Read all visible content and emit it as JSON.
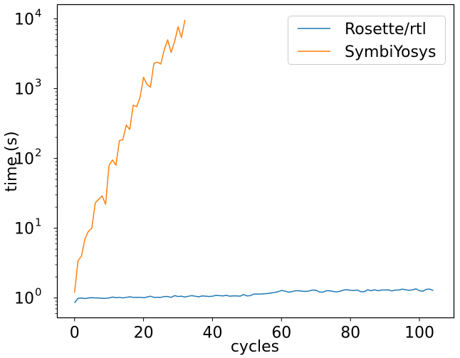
{
  "chart_data": {
    "type": "line",
    "xlabel": "cycles",
    "ylabel": "time (s)",
    "xlim": [
      -5,
      110
    ],
    "ylim": [
      0.52,
      16000
    ],
    "yscale": "log",
    "grid": false,
    "legend_position": "top-right",
    "x_ticks": [
      {
        "value": 0,
        "label": "0"
      },
      {
        "value": 20,
        "label": "20"
      },
      {
        "value": 40,
        "label": "40"
      },
      {
        "value": 60,
        "label": "60"
      },
      {
        "value": 80,
        "label": "80"
      },
      {
        "value": 100,
        "label": "100"
      }
    ],
    "y_ticks": [
      {
        "value": 1,
        "base": "10",
        "exp": "0"
      },
      {
        "value": 10,
        "base": "10",
        "exp": "1"
      },
      {
        "value": 100,
        "base": "10",
        "exp": "2"
      },
      {
        "value": 1000,
        "base": "10",
        "exp": "3"
      },
      {
        "value": 10000,
        "base": "10",
        "exp": "4"
      }
    ],
    "series": [
      {
        "name": "Rosette/rtl",
        "color": "#1f77b4",
        "x": [
          0,
          1,
          2,
          3,
          4,
          5,
          6,
          7,
          8,
          9,
          10,
          11,
          12,
          13,
          14,
          15,
          16,
          17,
          18,
          19,
          20,
          21,
          22,
          23,
          24,
          25,
          26,
          27,
          28,
          29,
          30,
          31,
          32,
          33,
          34,
          35,
          36,
          37,
          38,
          39,
          40,
          41,
          42,
          43,
          44,
          45,
          46,
          47,
          48,
          49,
          50,
          51,
          52,
          53,
          54,
          55,
          56,
          57,
          58,
          59,
          60,
          61,
          62,
          63,
          64,
          65,
          66,
          67,
          68,
          69,
          70,
          71,
          72,
          73,
          74,
          75,
          76,
          77,
          78,
          79,
          80,
          81,
          82,
          83,
          84,
          85,
          86,
          87,
          88,
          89,
          90,
          91,
          92,
          93,
          94,
          95,
          96,
          97,
          98,
          99,
          100,
          101,
          102,
          103,
          104
        ],
        "y": [
          0.85,
          0.99,
          1.0,
          0.98,
          1.0,
          1.01,
          1.0,
          1.0,
          0.99,
          0.99,
          1.0,
          1.03,
          1.01,
          1.02,
          1.0,
          1.02,
          1.04,
          1.02,
          1.02,
          1.02,
          1.01,
          1.03,
          1.06,
          1.02,
          1.02,
          1.02,
          1.05,
          1.05,
          1.02,
          1.08,
          1.05,
          1.06,
          1.03,
          1.06,
          1.08,
          1.06,
          1.04,
          1.07,
          1.06,
          1.05,
          1.06,
          1.09,
          1.08,
          1.07,
          1.09,
          1.06,
          1.07,
          1.07,
          1.06,
          1.12,
          1.07,
          1.08,
          1.14,
          1.14,
          1.14,
          1.15,
          1.16,
          1.18,
          1.2,
          1.23,
          1.28,
          1.26,
          1.21,
          1.23,
          1.27,
          1.27,
          1.25,
          1.24,
          1.26,
          1.3,
          1.29,
          1.22,
          1.21,
          1.27,
          1.27,
          1.24,
          1.22,
          1.25,
          1.3,
          1.31,
          1.29,
          1.28,
          1.3,
          1.23,
          1.23,
          1.31,
          1.27,
          1.31,
          1.27,
          1.3,
          1.3,
          1.31,
          1.26,
          1.3,
          1.3,
          1.34,
          1.31,
          1.29,
          1.31,
          1.35,
          1.27,
          1.25,
          1.33,
          1.34,
          1.28
        ]
      },
      {
        "name": "SymbiYosys",
        "color": "#ff7f0e",
        "x": [
          0,
          1,
          2,
          3,
          4,
          5,
          6,
          7,
          8,
          9,
          10,
          11,
          12,
          13,
          14,
          15,
          16,
          17,
          18,
          19,
          20,
          21,
          22,
          23,
          24,
          25,
          26,
          27,
          28,
          29,
          30,
          31,
          32
        ],
        "y": [
          1.2,
          3.4,
          4.0,
          7.0,
          9.0,
          10.0,
          23.0,
          26.0,
          29.0,
          22.0,
          80.0,
          95.0,
          80.0,
          180.0,
          185.0,
          300.0,
          260.0,
          580.0,
          550.0,
          750.0,
          1450.0,
          1150.0,
          1050.0,
          2300.0,
          2400.0,
          2250.0,
          3600.0,
          5000.0,
          3300.0,
          4700.0,
          7700.0,
          5400.0,
          9700.0
        ]
      }
    ]
  }
}
